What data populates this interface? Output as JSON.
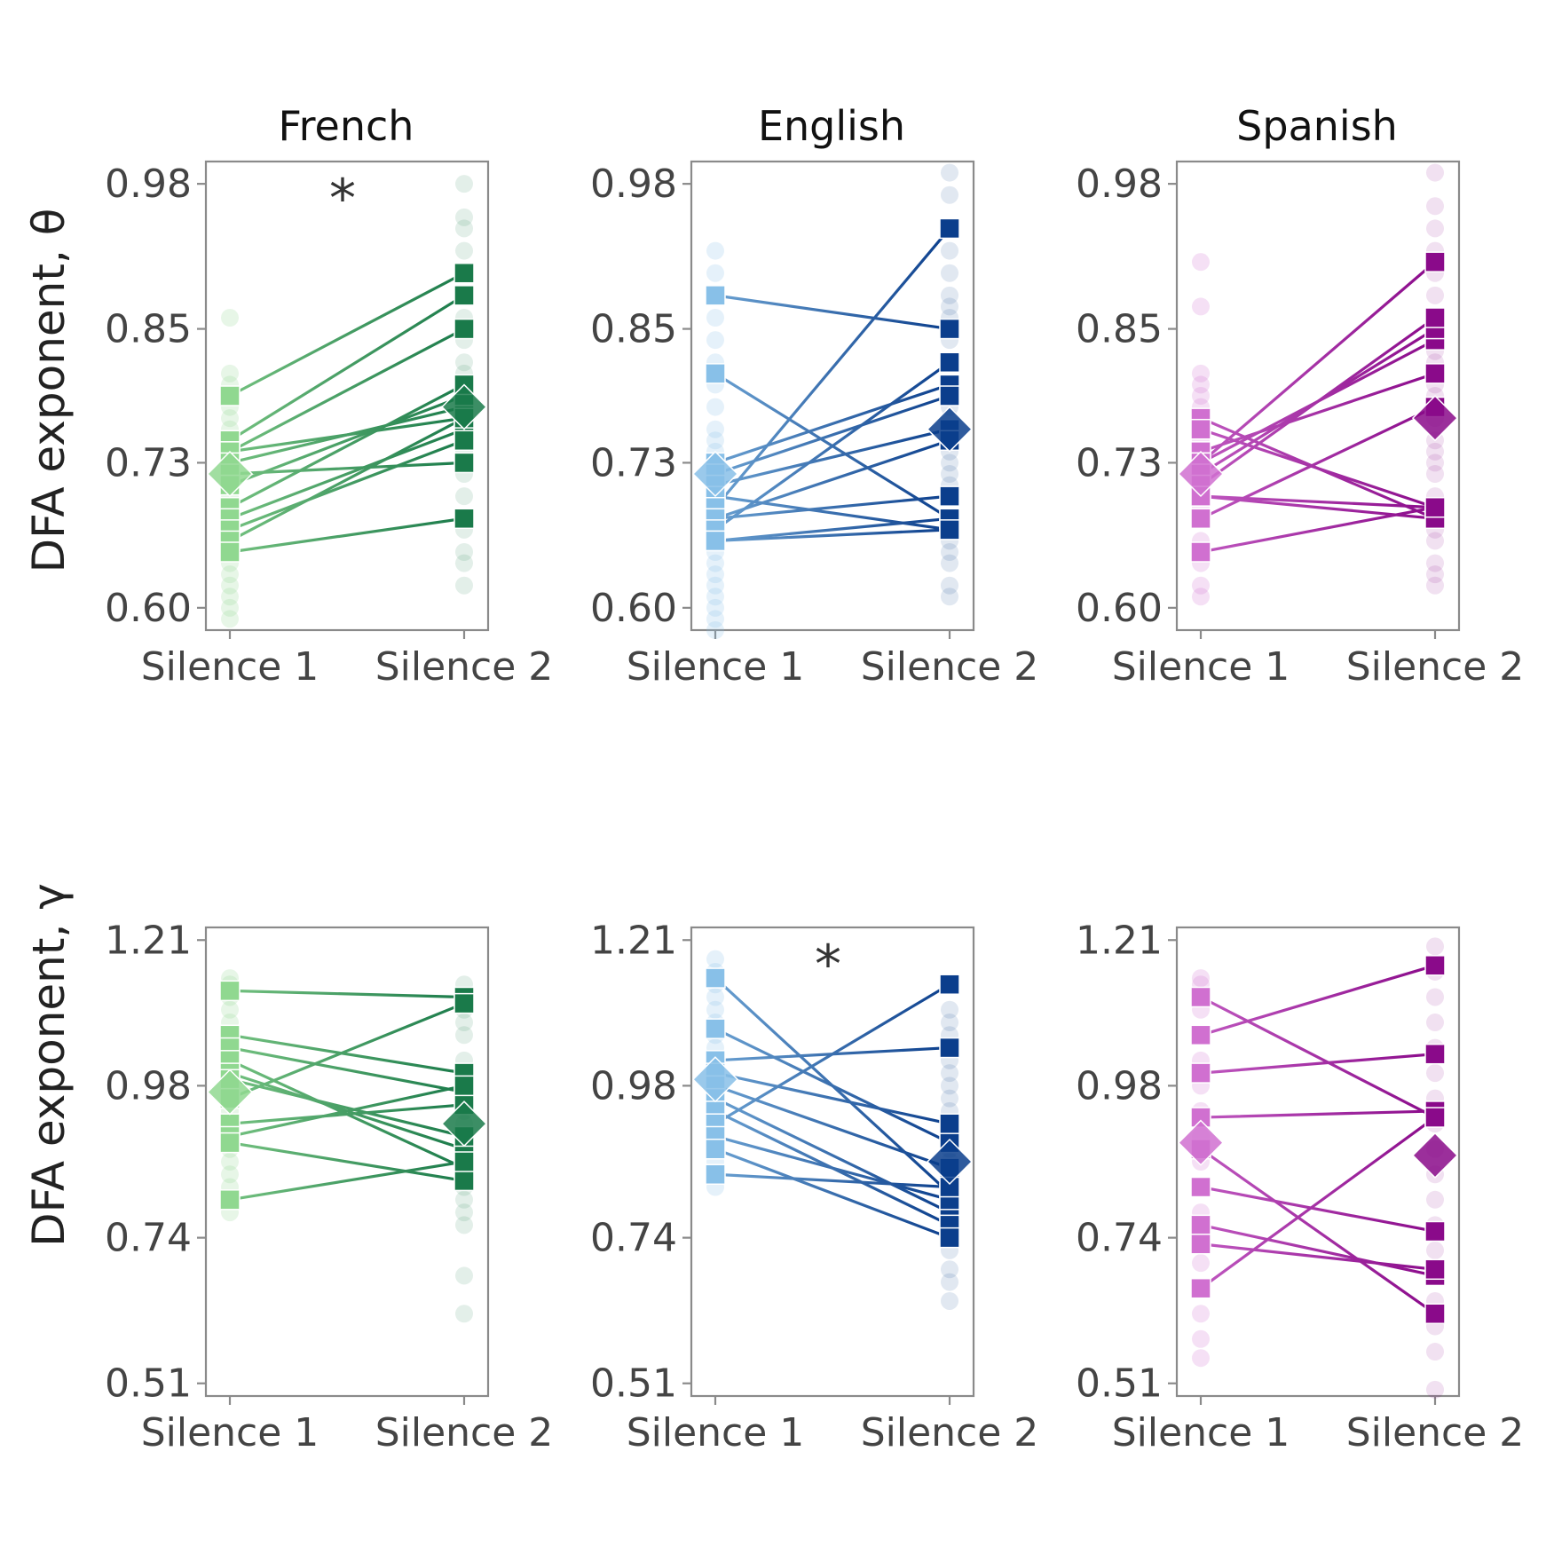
{
  "chart_data": [
    {
      "type": "scatter",
      "panel": "French",
      "title": "French",
      "ylabel": "DFA exponent, θ",
      "categories": [
        "Silence 1",
        "Silence 2"
      ],
      "yticks": [
        "0.60",
        "0.73",
        "0.85",
        "0.98"
      ],
      "ylim": [
        0.58,
        1.0
      ],
      "significance": "*",
      "color": "#1a7a4a",
      "color_light": "#90d890",
      "background_points": {
        "silence1": [
          0.59,
          0.6,
          0.61,
          0.62,
          0.63,
          0.64,
          0.65,
          0.66,
          0.67,
          0.68,
          0.69,
          0.7,
          0.71,
          0.72,
          0.73,
          0.74,
          0.75,
          0.76,
          0.77,
          0.78,
          0.79,
          0.8,
          0.81,
          0.86
        ],
        "silence2": [
          0.62,
          0.64,
          0.65,
          0.67,
          0.68,
          0.7,
          0.72,
          0.73,
          0.74,
          0.75,
          0.76,
          0.77,
          0.78,
          0.79,
          0.8,
          0.81,
          0.82,
          0.84,
          0.85,
          0.86,
          0.88,
          0.9,
          0.92,
          0.94,
          0.95,
          0.98
        ]
      },
      "pairs": [
        [
          0.79,
          0.9
        ],
        [
          0.75,
          0.88
        ],
        [
          0.74,
          0.85
        ],
        [
          0.74,
          0.77
        ],
        [
          0.73,
          0.78
        ],
        [
          0.72,
          0.73
        ],
        [
          0.71,
          0.79
        ],
        [
          0.69,
          0.8
        ],
        [
          0.68,
          0.76
        ],
        [
          0.67,
          0.75
        ],
        [
          0.66,
          0.77
        ],
        [
          0.65,
          0.68
        ]
      ],
      "means": [
        0.72,
        0.78
      ]
    },
    {
      "type": "scatter",
      "panel": "English",
      "title": "English",
      "ylabel": "",
      "categories": [
        "Silence 1",
        "Silence 2"
      ],
      "yticks": [
        "0.60",
        "0.73",
        "0.85",
        "0.98"
      ],
      "ylim": [
        0.58,
        1.0
      ],
      "significance": "",
      "color": "#0b3e8c",
      "color_light": "#88c0e8",
      "background_points": {
        "silence1": [
          0.58,
          0.59,
          0.6,
          0.61,
          0.62,
          0.63,
          0.64,
          0.65,
          0.66,
          0.67,
          0.68,
          0.69,
          0.7,
          0.71,
          0.72,
          0.73,
          0.74,
          0.75,
          0.76,
          0.78,
          0.8,
          0.82,
          0.84,
          0.86,
          0.88,
          0.9,
          0.92
        ],
        "silence2": [
          0.61,
          0.62,
          0.64,
          0.65,
          0.66,
          0.67,
          0.68,
          0.7,
          0.71,
          0.72,
          0.73,
          0.74,
          0.75,
          0.76,
          0.77,
          0.78,
          0.79,
          0.8,
          0.82,
          0.84,
          0.86,
          0.87,
          0.88,
          0.9,
          0.92,
          0.94,
          0.97,
          0.99
        ]
      },
      "pairs": [
        [
          0.88,
          0.85
        ],
        [
          0.81,
          0.68
        ],
        [
          0.73,
          0.8
        ],
        [
          0.72,
          0.79
        ],
        [
          0.71,
          0.76
        ],
        [
          0.7,
          0.67
        ],
        [
          0.69,
          0.94
        ],
        [
          0.68,
          0.7
        ],
        [
          0.68,
          0.75
        ],
        [
          0.67,
          0.82
        ],
        [
          0.66,
          0.68
        ],
        [
          0.66,
          0.67
        ]
      ],
      "means": [
        0.72,
        0.76
      ]
    },
    {
      "type": "scatter",
      "panel": "Spanish",
      "title": "Spanish",
      "ylabel": "",
      "categories": [
        "Silence 1",
        "Silence 2"
      ],
      "yticks": [
        "0.60",
        "0.73",
        "0.85",
        "0.98"
      ],
      "ylim": [
        0.58,
        1.0
      ],
      "significance": "",
      "color": "#8a0a8a",
      "color_light": "#d070d0",
      "background_points": {
        "silence1": [
          0.61,
          0.62,
          0.64,
          0.66,
          0.68,
          0.69,
          0.7,
          0.71,
          0.72,
          0.73,
          0.74,
          0.75,
          0.76,
          0.77,
          0.78,
          0.79,
          0.8,
          0.81,
          0.87,
          0.91
        ],
        "silence2": [
          0.62,
          0.63,
          0.64,
          0.66,
          0.67,
          0.68,
          0.69,
          0.7,
          0.72,
          0.73,
          0.74,
          0.75,
          0.77,
          0.78,
          0.79,
          0.8,
          0.82,
          0.83,
          0.85,
          0.86,
          0.88,
          0.9,
          0.92,
          0.94,
          0.96,
          0.99
        ]
      },
      "pairs": [
        [
          0.77,
          0.68
        ],
        [
          0.76,
          0.69
        ],
        [
          0.74,
          0.81
        ],
        [
          0.73,
          0.84
        ],
        [
          0.73,
          0.91
        ],
        [
          0.72,
          0.85
        ],
        [
          0.71,
          0.86
        ],
        [
          0.7,
          0.69
        ],
        [
          0.7,
          0.68
        ],
        [
          0.68,
          0.78
        ],
        [
          0.65,
          0.69
        ]
      ],
      "means": [
        0.72,
        0.77
      ]
    },
    {
      "type": "scatter",
      "panel": "French",
      "title": "",
      "ylabel": "DFA exponent, γ",
      "categories": [
        "Silence 1",
        "Silence 2"
      ],
      "yticks": [
        "0.51",
        "0.74",
        "0.98",
        "1.21"
      ],
      "ylim": [
        0.49,
        1.23
      ],
      "significance": "",
      "color": "#1a7a4a",
      "color_light": "#90d890",
      "background_points": {
        "silence1": [
          0.78,
          0.8,
          0.82,
          0.84,
          0.86,
          0.88,
          0.9,
          0.92,
          0.94,
          0.96,
          0.98,
          1.0,
          1.02,
          1.04,
          1.06,
          1.08,
          1.1,
          1.12,
          1.14,
          1.15
        ],
        "silence2": [
          0.62,
          0.68,
          0.76,
          0.78,
          0.8,
          0.82,
          0.84,
          0.86,
          0.88,
          0.9,
          0.92,
          0.94,
          0.96,
          0.98,
          1.0,
          1.02,
          1.06,
          1.08,
          1.1,
          1.12,
          1.14
        ]
      },
      "pairs": [
        [
          1.13,
          1.12
        ],
        [
          1.06,
          1.0
        ],
        [
          1.04,
          0.97
        ],
        [
          1.02,
          0.85
        ],
        [
          1.0,
          0.88
        ],
        [
          0.99,
          0.9
        ],
        [
          0.96,
          1.11
        ],
        [
          0.92,
          0.95
        ],
        [
          0.9,
          0.98
        ],
        [
          0.89,
          0.83
        ],
        [
          0.8,
          0.86
        ]
      ],
      "means": [
        0.97,
        0.92
      ]
    },
    {
      "type": "scatter",
      "panel": "English",
      "title": "",
      "ylabel": "",
      "categories": [
        "Silence 1",
        "Silence 2"
      ],
      "yticks": [
        "0.51",
        "0.74",
        "0.98",
        "1.21"
      ],
      "ylim": [
        0.49,
        1.23
      ],
      "significance": "*",
      "color": "#0b3e8c",
      "color_light": "#88c0e8",
      "background_points": {
        "silence1": [
          0.82,
          0.84,
          0.86,
          0.88,
          0.9,
          0.92,
          0.94,
          0.96,
          0.98,
          1.0,
          1.02,
          1.04,
          1.06,
          1.08,
          1.1,
          1.12,
          1.14,
          1.16,
          1.18
        ],
        "silence2": [
          0.64,
          0.67,
          0.69,
          0.72,
          0.74,
          0.76,
          0.78,
          0.8,
          0.82,
          0.84,
          0.86,
          0.88,
          0.9,
          0.92,
          0.94,
          0.96,
          0.98,
          1.0,
          1.02,
          1.04,
          1.06,
          1.08,
          1.1
        ]
      },
      "pairs": [
        [
          1.15,
          0.81
        ],
        [
          1.07,
          0.89
        ],
        [
          1.02,
          1.04
        ],
        [
          1.0,
          0.92
        ],
        [
          0.98,
          0.85
        ],
        [
          0.96,
          0.78
        ],
        [
          0.94,
          0.76
        ],
        [
          0.92,
          1.14
        ],
        [
          0.9,
          0.8
        ],
        [
          0.88,
          0.74
        ],
        [
          0.84,
          0.82
        ]
      ],
      "means": [
        0.99,
        0.86
      ]
    },
    {
      "type": "scatter",
      "panel": "Spanish",
      "title": "",
      "ylabel": "",
      "categories": [
        "Silence 1",
        "Silence 2"
      ],
      "yticks": [
        "0.51",
        "0.74",
        "0.98",
        "1.21"
      ],
      "ylim": [
        0.49,
        1.23
      ],
      "significance": "",
      "color": "#8a0a8a",
      "color_light": "#d070d0",
      "background_points": {
        "silence1": [
          0.55,
          0.58,
          0.62,
          0.66,
          0.7,
          0.74,
          0.78,
          0.82,
          0.86,
          0.9,
          0.94,
          0.98,
          1.02,
          1.06,
          1.1,
          1.14,
          1.15
        ],
        "silence2": [
          0.5,
          0.56,
          0.6,
          0.64,
          0.68,
          0.72,
          0.76,
          0.8,
          0.84,
          0.88,
          0.92,
          0.96,
          1.0,
          1.04,
          1.08,
          1.12,
          1.16,
          1.2
        ]
      },
      "pairs": [
        [
          1.12,
          0.93
        ],
        [
          1.06,
          1.17
        ],
        [
          1.0,
          1.03
        ],
        [
          0.93,
          0.94
        ],
        [
          0.88,
          0.62
        ],
        [
          0.82,
          0.75
        ],
        [
          0.76,
          0.68
        ],
        [
          0.73,
          0.69
        ],
        [
          0.66,
          0.93
        ]
      ],
      "means": [
        0.89,
        0.87
      ]
    }
  ]
}
